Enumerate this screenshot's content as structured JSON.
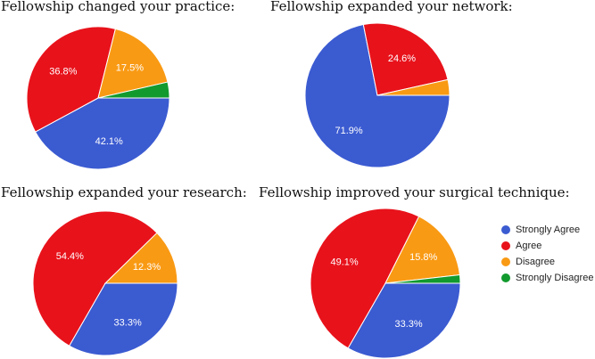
{
  "chart_data": [
    {
      "type": "pie",
      "title": "Fellowship changed your practice:",
      "categories": [
        "Strongly Agree",
        "Agree",
        "Disagree",
        "Strongly Disagree"
      ],
      "values": [
        42.1,
        36.8,
        17.5,
        3.6
      ],
      "labels": [
        "42.1%",
        "36.8%",
        "17.5%",
        ""
      ]
    },
    {
      "type": "pie",
      "title": "Fellowship expanded your network:",
      "categories": [
        "Strongly Agree",
        "Agree",
        "Disagree",
        "Strongly Disagree"
      ],
      "values": [
        71.9,
        24.6,
        3.5,
        0
      ],
      "labels": [
        "71.9%",
        "24.6%",
        "",
        ""
      ]
    },
    {
      "type": "pie",
      "title": "Fellowship expanded your research:",
      "categories": [
        "Strongly Agree",
        "Agree",
        "Disagree",
        "Strongly Disagree"
      ],
      "values": [
        33.3,
        54.4,
        12.3,
        0
      ],
      "labels": [
        "33.3%",
        "54.4%",
        "12.3%",
        ""
      ]
    },
    {
      "type": "pie",
      "title": "Fellowship improved your surgical technique:",
      "categories": [
        "Strongly Agree",
        "Agree",
        "Disagree",
        "Strongly Disagree"
      ],
      "values": [
        33.3,
        49.1,
        15.8,
        1.8
      ],
      "labels": [
        "33.3%",
        "49.1%",
        "15.8%",
        ""
      ]
    }
  ],
  "legend": {
    "items": [
      {
        "label": "Strongly Agree",
        "color": "#3b5bd1"
      },
      {
        "label": "Agree",
        "color": "#e8121b"
      },
      {
        "label": "Disagree",
        "color": "#f99a14"
      },
      {
        "label": "Strongly Disagree",
        "color": "#129a2e"
      }
    ]
  }
}
